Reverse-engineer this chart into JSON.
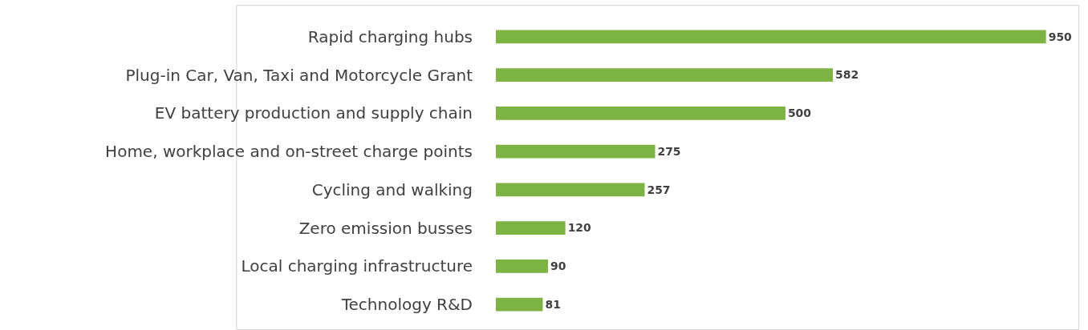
{
  "chart_data": {
    "type": "bar",
    "orientation": "horizontal",
    "categories": [
      "Rapid charging hubs",
      "Plug-in Car, Van, Taxi and Motorcycle Grant",
      "EV battery production and supply chain",
      "Home, workplace and on-street charge points",
      "Cycling and walking",
      "Zero emission busses",
      "Local charging infrastructure",
      "Technology R&D"
    ],
    "values": [
      950,
      582,
      500,
      275,
      257,
      120,
      90,
      81
    ],
    "color": "#7cb342",
    "data_labels": true
  }
}
